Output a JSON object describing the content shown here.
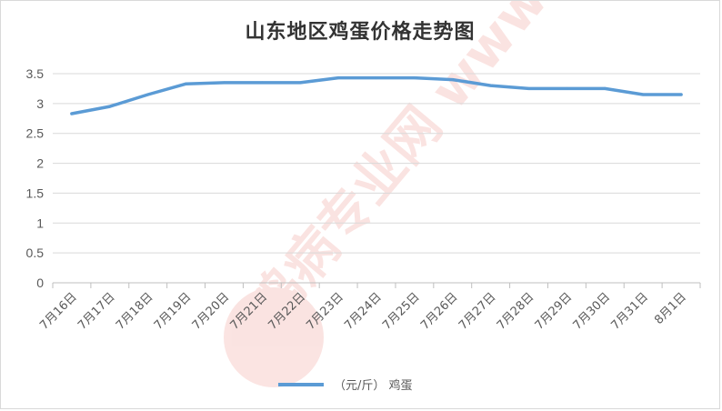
{
  "chart_data": {
    "type": "line",
    "title": "山东地区鸡蛋价格走势图",
    "categories": [
      "7月16日",
      "7月17日",
      "7月18日",
      "7月19日",
      "7月20日",
      "7月21日",
      "7月22日",
      "7月23日",
      "7月24日",
      "7月25日",
      "7月26日",
      "7月27日",
      "7月28日",
      "7月29日",
      "7月30日",
      "7月31日",
      "8月1日"
    ],
    "series": [
      {
        "name": "（元/斤） 鸡蛋",
        "color": "#5b9bd5",
        "values": [
          2.83,
          2.95,
          3.15,
          3.33,
          3.35,
          3.35,
          3.35,
          3.43,
          3.43,
          3.43,
          3.4,
          3.3,
          3.25,
          3.25,
          3.25,
          3.15,
          3.15
        ]
      }
    ],
    "ylim": [
      0,
      3.5
    ],
    "yticks": [
      "0",
      "0.5",
      "1",
      "1.5",
      "2",
      "2.5",
      "3",
      "3.5"
    ],
    "grid": true,
    "legend_position": "bottom",
    "watermark": "鸡病专业网 www.jbzyw.com"
  }
}
